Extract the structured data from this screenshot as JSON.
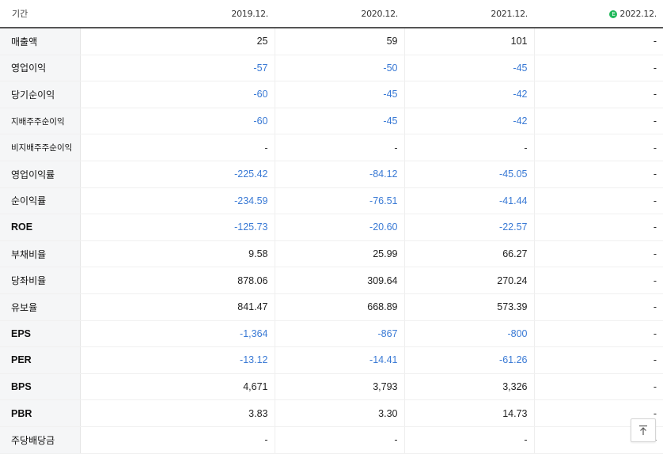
{
  "header": {
    "label": "기간",
    "periods": [
      "2019.12.",
      "2020.12.",
      "2021.12.",
      "2022.12."
    ],
    "estimate_badge": "E"
  },
  "rows": [
    {
      "label": "매출액",
      "values": [
        "25",
        "59",
        "101",
        "-"
      ]
    },
    {
      "label": "영업이익",
      "values": [
        "-57",
        "-50",
        "-45",
        "-"
      ]
    },
    {
      "label": "당기순이익",
      "values": [
        "-60",
        "-45",
        "-42",
        "-"
      ]
    },
    {
      "label": "지배주주순이익",
      "values": [
        "-60",
        "-45",
        "-42",
        "-"
      ]
    },
    {
      "label": "비지배주주순이익",
      "values": [
        "-",
        "-",
        "-",
        "-"
      ]
    },
    {
      "label": "영업이익률",
      "values": [
        "-225.42",
        "-84.12",
        "-45.05",
        "-"
      ]
    },
    {
      "label": "순이익률",
      "values": [
        "-234.59",
        "-76.51",
        "-41.44",
        "-"
      ]
    },
    {
      "label": "ROE",
      "values": [
        "-125.73",
        "-20.60",
        "-22.57",
        "-"
      ]
    },
    {
      "label": "부채비율",
      "values": [
        "9.58",
        "25.99",
        "66.27",
        "-"
      ]
    },
    {
      "label": "당좌비율",
      "values": [
        "878.06",
        "309.64",
        "270.24",
        "-"
      ]
    },
    {
      "label": "유보율",
      "values": [
        "841.47",
        "668.89",
        "573.39",
        "-"
      ]
    },
    {
      "label": "EPS",
      "values": [
        "-1,364",
        "-867",
        "-800",
        "-"
      ]
    },
    {
      "label": "PER",
      "values": [
        "-13.12",
        "-14.41",
        "-61.26",
        "-"
      ]
    },
    {
      "label": "BPS",
      "values": [
        "4,671",
        "3,793",
        "3,326",
        "-"
      ]
    },
    {
      "label": "PBR",
      "values": [
        "3.83",
        "3.30",
        "14.73",
        "-"
      ]
    },
    {
      "label": "주당배당금",
      "values": [
        "-",
        "-",
        "-",
        "-"
      ]
    }
  ],
  "colors": {
    "negative": "#3a7ad5",
    "estimate_badge": "#1fb85a"
  },
  "scroll_top_icon": "arrow-up-to-line-icon"
}
